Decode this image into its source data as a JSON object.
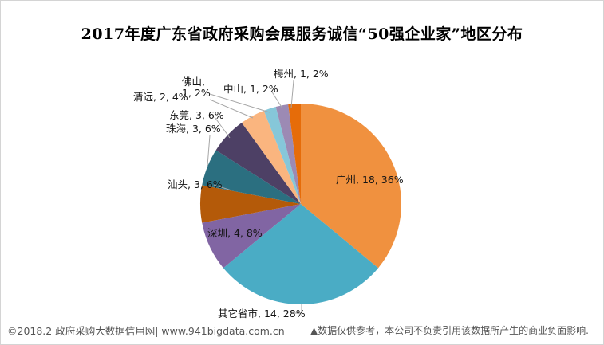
{
  "chart_data": {
    "type": "pie",
    "title": "2017年度广东省政府采购会展服务诚信“50强企业家”地区分布",
    "total": 50,
    "start_angle_deg": 0,
    "direction": "clockwise",
    "slices": [
      {
        "name": "广州",
        "count": 18,
        "pct": 36,
        "color": "#F0913F",
        "label": "广州, 18, 36%"
      },
      {
        "name": "其它省市",
        "count": 14,
        "pct": 28,
        "color": "#4AACC5",
        "label": "其它省市, 14, 28%"
      },
      {
        "name": "深圳",
        "count": 4,
        "pct": 8,
        "color": "#8165A3",
        "label": "深圳, 4, 8%"
      },
      {
        "name": "汕头",
        "count": 3,
        "pct": 6,
        "color": "#B45A09",
        "label": "汕头, 3, 6%"
      },
      {
        "name": "珠海",
        "count": 3,
        "pct": 6,
        "color": "#2B6F80",
        "label": "珠海, 3, 6%"
      },
      {
        "name": "东莞",
        "count": 3,
        "pct": 6,
        "color": "#4D4065",
        "label": "东莞, 3, 6%"
      },
      {
        "name": "清远",
        "count": 2,
        "pct": 4,
        "color": "#FAB57F",
        "label": "清远, 2, 4%"
      },
      {
        "name": "佛山",
        "count": 1,
        "pct": 2,
        "color": "#86C7D9",
        "label": "佛山,\n1, 2%"
      },
      {
        "name": "中山",
        "count": 1,
        "pct": 2,
        "color": "#9C8AB4",
        "label": "中山, 1, 2%"
      },
      {
        "name": "梅州",
        "count": 1,
        "pct": 2,
        "color": "#E66C09",
        "label": "梅州, 1, 2%"
      }
    ],
    "leader_line_color": "#A6A6A6"
  },
  "footer": {
    "left": "©2018.2 政府采购大数据信用网| www.941bigdata.com.cn",
    "right": "▲数据仅供参考，本公司不负责引用该数据所产生的商业负面影响."
  }
}
